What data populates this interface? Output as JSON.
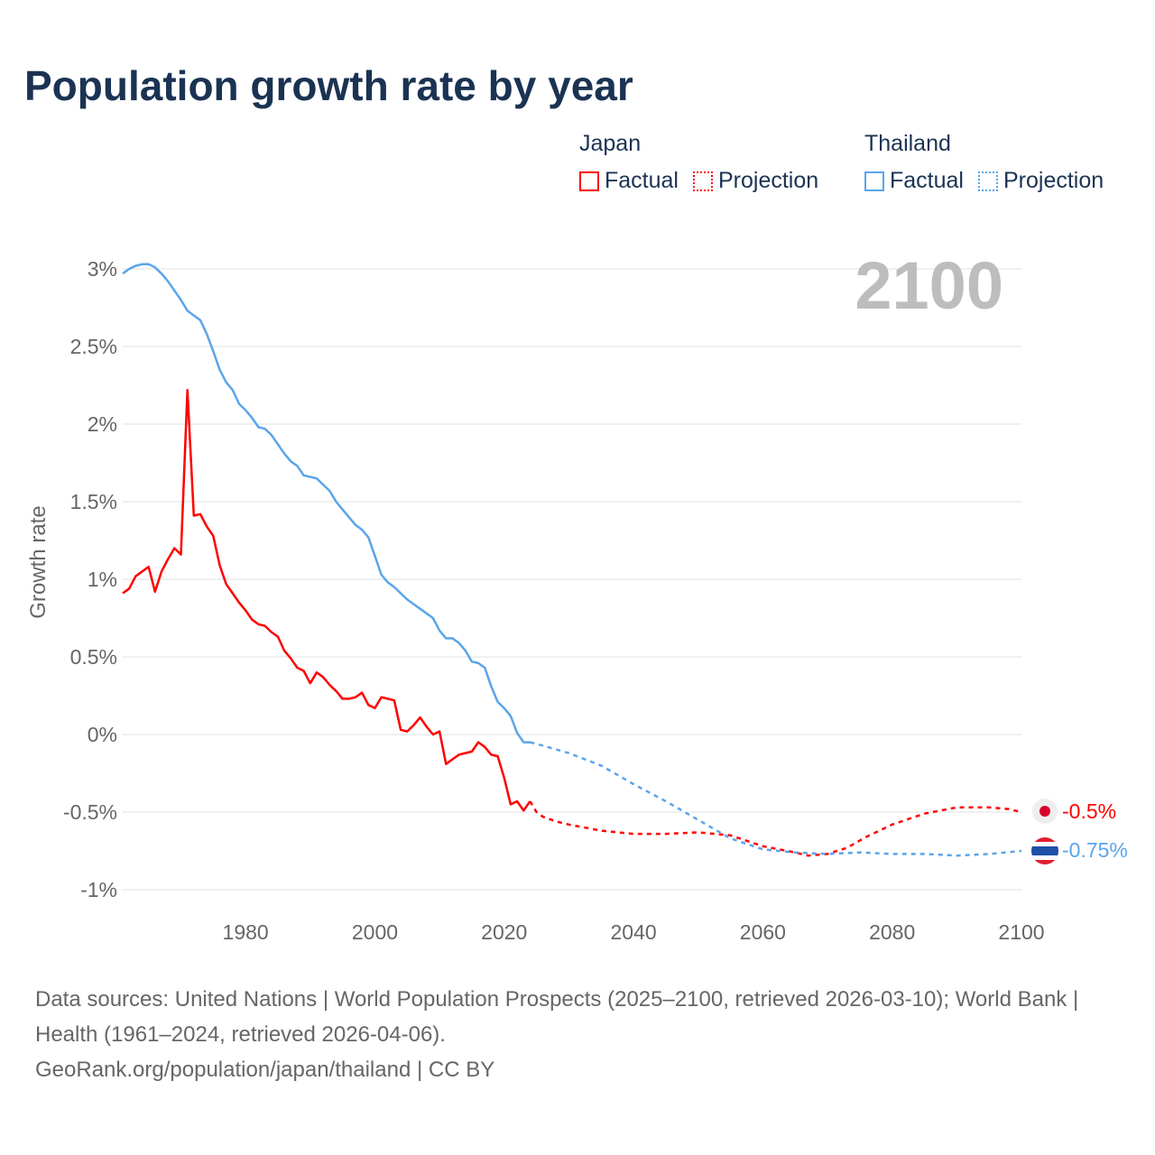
{
  "title": "Population growth rate by year",
  "legend": {
    "groups": [
      {
        "name": "Japan",
        "color": "#ff0000",
        "factual": "Factual",
        "projection": "Projection"
      },
      {
        "name": "Thailand",
        "color": "#5aa5ea",
        "factual": "Factual",
        "projection": "Projection"
      }
    ]
  },
  "year_label": "2100",
  "end_labels": {
    "japan": "-0.5%",
    "thailand": "-0.75%"
  },
  "footer": {
    "sources": "Data sources: United Nations | World Population Prospects (2025–2100, retrieved 2026-03-10); World Bank | Health (1961–2024, retrieved 2026-04-06).",
    "credit": "GeoRank.org/population/japan/thailand | CC BY"
  },
  "chart_data": {
    "type": "line",
    "title": "Population growth rate by year",
    "xlabel": "",
    "ylabel": "Growth rate",
    "xlim": [
      1961,
      2100
    ],
    "ylim": [
      -1.1,
      3.05
    ],
    "xticks": [
      1980,
      2000,
      2020,
      2040,
      2060,
      2080,
      2100
    ],
    "yticks": [
      {
        "v": 3,
        "label": "3%"
      },
      {
        "v": 2.5,
        "label": "2.5%"
      },
      {
        "v": 2,
        "label": "2%"
      },
      {
        "v": 1.5,
        "label": "1.5%"
      },
      {
        "v": 1,
        "label": "1%"
      },
      {
        "v": 0.5,
        "label": "0.5%"
      },
      {
        "v": 0,
        "label": "0%"
      },
      {
        "v": -0.5,
        "label": "-0.5%"
      },
      {
        "v": -1,
        "label": "-1%"
      }
    ],
    "grid": true,
    "legend_position": "top-right",
    "series": [
      {
        "name": "Japan Factual",
        "color": "#ff0000",
        "dashed": false,
        "x": [
          1961,
          1962,
          1963,
          1964,
          1965,
          1966,
          1967,
          1968,
          1969,
          1970,
          1971,
          1972,
          1973,
          1974,
          1975,
          1976,
          1977,
          1978,
          1979,
          1980,
          1981,
          1982,
          1983,
          1984,
          1985,
          1986,
          1987,
          1988,
          1989,
          1990,
          1991,
          1992,
          1993,
          1994,
          1995,
          1996,
          1997,
          1998,
          1999,
          2000,
          2001,
          2002,
          2003,
          2004,
          2005,
          2006,
          2007,
          2008,
          2009,
          2010,
          2011,
          2012,
          2013,
          2014,
          2015,
          2016,
          2017,
          2018,
          2019,
          2020,
          2021,
          2022,
          2023,
          2024
        ],
        "y": [
          0.91,
          0.94,
          1.02,
          1.05,
          1.08,
          0.92,
          1.05,
          1.13,
          1.2,
          1.16,
          2.22,
          1.41,
          1.42,
          1.34,
          1.28,
          1.09,
          0.97,
          0.91,
          0.85,
          0.8,
          0.74,
          0.71,
          0.7,
          0.66,
          0.63,
          0.54,
          0.49,
          0.43,
          0.41,
          0.33,
          0.4,
          0.37,
          0.32,
          0.28,
          0.23,
          0.23,
          0.24,
          0.27,
          0.19,
          0.17,
          0.24,
          0.23,
          0.22,
          0.03,
          0.02,
          0.06,
          0.11,
          0.05,
          0.0,
          0.02,
          -0.19,
          -0.16,
          -0.13,
          -0.12,
          -0.11,
          -0.05,
          -0.08,
          -0.13,
          -0.14,
          -0.28,
          -0.45,
          -0.43,
          -0.49,
          -0.43
        ]
      },
      {
        "name": "Japan Projection",
        "color": "#ff0000",
        "dashed": true,
        "x": [
          2024,
          2025,
          2026,
          2028,
          2030,
          2035,
          2040,
          2045,
          2050,
          2055,
          2060,
          2065,
          2067,
          2070,
          2073,
          2076,
          2080,
          2085,
          2090,
          2095,
          2098,
          2100
        ],
        "y": [
          -0.43,
          -0.5,
          -0.53,
          -0.56,
          -0.58,
          -0.62,
          -0.64,
          -0.64,
          -0.63,
          -0.65,
          -0.72,
          -0.76,
          -0.78,
          -0.77,
          -0.73,
          -0.66,
          -0.58,
          -0.51,
          -0.47,
          -0.47,
          -0.48,
          -0.5
        ]
      },
      {
        "name": "Thailand Factual",
        "color": "#5aa5ea",
        "dashed": false,
        "x": [
          1961,
          1962,
          1963,
          1964,
          1965,
          1966,
          1967,
          1968,
          1969,
          1970,
          1971,
          1972,
          1973,
          1974,
          1975,
          1976,
          1977,
          1978,
          1979,
          1980,
          1981,
          1982,
          1983,
          1984,
          1985,
          1986,
          1987,
          1988,
          1989,
          1990,
          1991,
          1992,
          1993,
          1994,
          1995,
          1996,
          1997,
          1998,
          1999,
          2000,
          2001,
          2002,
          2003,
          2004,
          2005,
          2006,
          2007,
          2008,
          2009,
          2010,
          2011,
          2012,
          2013,
          2014,
          2015,
          2016,
          2017,
          2018,
          2019,
          2020,
          2021,
          2022,
          2023,
          2024
        ],
        "y": [
          2.97,
          3.0,
          3.02,
          3.03,
          3.03,
          3.01,
          2.97,
          2.92,
          2.86,
          2.8,
          2.73,
          2.7,
          2.67,
          2.58,
          2.47,
          2.35,
          2.27,
          2.22,
          2.13,
          2.09,
          2.04,
          1.98,
          1.97,
          1.93,
          1.87,
          1.81,
          1.76,
          1.73,
          1.67,
          1.66,
          1.65,
          1.61,
          1.57,
          1.5,
          1.45,
          1.4,
          1.35,
          1.32,
          1.27,
          1.15,
          1.03,
          0.98,
          0.95,
          0.91,
          0.87,
          0.84,
          0.81,
          0.78,
          0.75,
          0.67,
          0.62,
          0.62,
          0.59,
          0.54,
          0.47,
          0.46,
          0.43,
          0.31,
          0.21,
          0.17,
          0.12,
          0.01,
          -0.05,
          -0.05
        ]
      },
      {
        "name": "Thailand Projection",
        "color": "#5aa5ea",
        "dashed": true,
        "x": [
          2024,
          2025,
          2030,
          2035,
          2040,
          2045,
          2050,
          2055,
          2060,
          2065,
          2070,
          2075,
          2080,
          2085,
          2090,
          2095,
          2100
        ],
        "y": [
          -0.05,
          -0.06,
          -0.12,
          -0.2,
          -0.32,
          -0.43,
          -0.55,
          -0.67,
          -0.74,
          -0.76,
          -0.77,
          -0.76,
          -0.77,
          -0.77,
          -0.78,
          -0.77,
          -0.75
        ]
      }
    ]
  }
}
